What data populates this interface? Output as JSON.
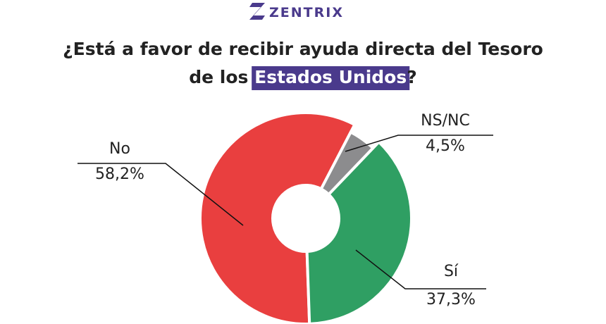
{
  "chart_data": {
    "type": "donut",
    "brand": "ZENTRIX",
    "title": [
      "¿Está a favor de recibir ayuda directa del Tesoro",
      "de los",
      "Estados Unidos",
      "?"
    ],
    "categories": [
      "No",
      "NS/NC",
      "Sí"
    ],
    "values": [
      58.2,
      4.5,
      37.3
    ],
    "value_labels": [
      "58,2%",
      "4,5%",
      "37,3%"
    ],
    "colors": [
      "#e93f3f",
      "#8c8c8e",
      "#2f9f63"
    ],
    "highlight_color": "#4a3a8c"
  }
}
